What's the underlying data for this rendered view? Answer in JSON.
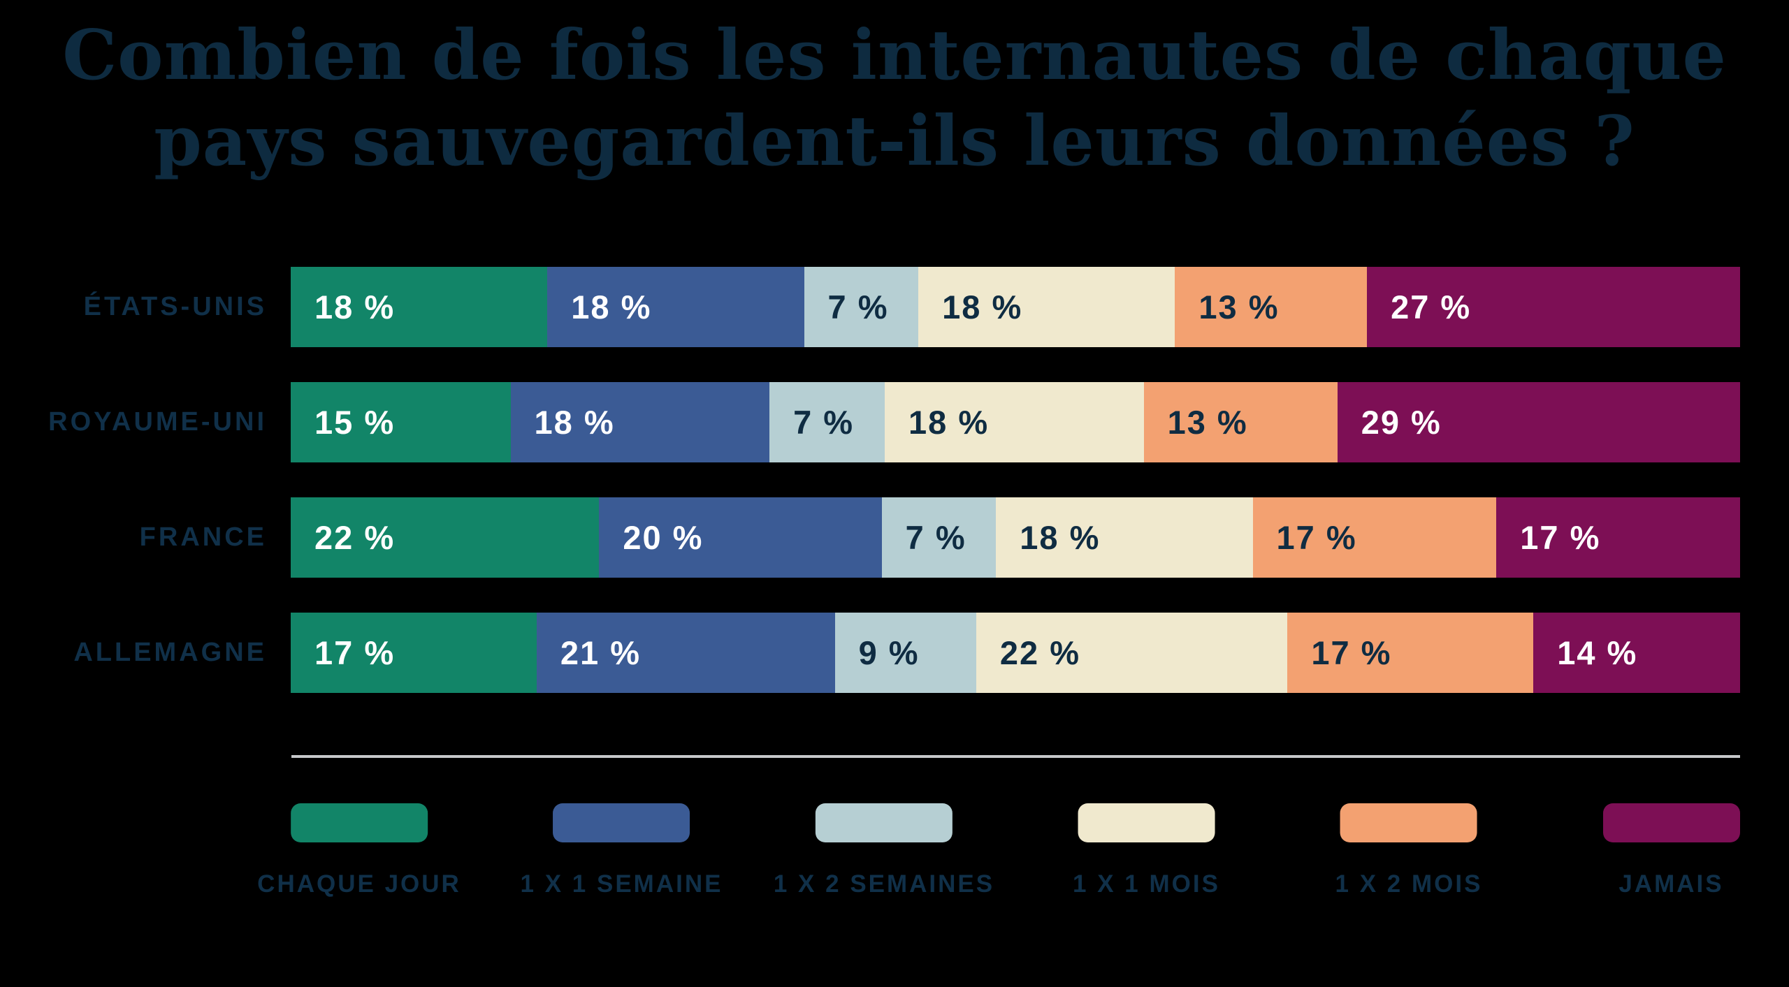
{
  "header": {
    "title_line1": "Combien de fois les internautes de chaque",
    "title_line2": "pays sauvegardent-ils leurs données ?"
  },
  "colors": {
    "background": "#000000",
    "title_text": "#0E2B40",
    "category_label_text": "#103049",
    "divider": "#C6C8CA",
    "value_label_light": "#FFFFFF",
    "value_label_dark": "#0F2C42"
  },
  "chart_data": {
    "type": "bar",
    "stacked": true,
    "orientation": "horizontal",
    "title": "Combien de fois les internautes de chaque pays sauvegardent-ils leurs données ?",
    "value_suffix": " %",
    "legend_position": "bottom",
    "grid": false,
    "categories": [
      "ÉTATS-UNIS",
      "ROYAUME-UNI",
      "FRANCE",
      "ALLEMAGNE"
    ],
    "series": [
      {
        "name": "CHAQUE JOUR",
        "color": "#128568",
        "label_color": "#FFFFFF",
        "values": [
          18,
          15,
          22,
          17
        ]
      },
      {
        "name": "1 X 1 SEMAINE",
        "color": "#3B5B95",
        "label_color": "#FFFFFF",
        "values": [
          18,
          18,
          20,
          21
        ]
      },
      {
        "name": "1 X 2 SEMAINES",
        "color": "#B6CFD3",
        "label_color": "#0F2C42",
        "values": [
          7,
          7,
          7,
          9
        ]
      },
      {
        "name": "1 X 1 MOIS",
        "color": "#F0E9CE",
        "label_color": "#0F2C42",
        "values": [
          18,
          18,
          18,
          22
        ]
      },
      {
        "name": "1 X 2 MOIS",
        "color": "#F3A171",
        "label_color": "#0F2C42",
        "values": [
          13,
          13,
          17,
          17
        ]
      },
      {
        "name": "JAMAIS",
        "color": "#7D0F55",
        "label_color": "#FFFFFF",
        "values": [
          27,
          29,
          17,
          14
        ]
      }
    ]
  }
}
